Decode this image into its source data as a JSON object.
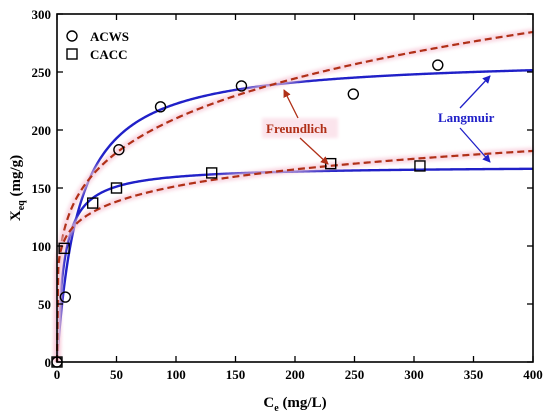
{
  "chart_data": {
    "type": "scatter",
    "xlabel": {
      "main": "C",
      "sub": "e",
      "rest": " (mg/L)"
    },
    "ylabel": {
      "main": "X",
      "sub": "eq",
      "rest": " (mg/g)"
    },
    "xlim": [
      0,
      400
    ],
    "ylim": [
      0,
      300
    ],
    "xticks": [
      0,
      50,
      100,
      150,
      200,
      250,
      300,
      350,
      400
    ],
    "yticks": [
      0,
      50,
      100,
      150,
      200,
      250,
      300
    ],
    "grid": false,
    "legend_position": "top-left",
    "series": [
      {
        "name": "ACWS",
        "marker": "circle",
        "points": [
          [
            0,
            0
          ],
          [
            7,
            56
          ],
          [
            52,
            183
          ],
          [
            87,
            220
          ],
          [
            155,
            238
          ],
          [
            249,
            231
          ],
          [
            320,
            256
          ]
        ]
      },
      {
        "name": "CACC",
        "marker": "square",
        "points": [
          [
            0,
            0
          ],
          [
            6,
            98
          ],
          [
            30,
            137
          ],
          [
            50,
            150
          ],
          [
            130,
            163
          ],
          [
            230,
            171
          ],
          [
            305,
            169
          ]
        ]
      }
    ],
    "fits": [
      {
        "model": "Langmuir",
        "for": "ACWS",
        "style": "solid",
        "color": "#2020c8",
        "qmax": 263,
        "K": 0.055
      },
      {
        "model": "Langmuir",
        "for": "CACC",
        "style": "solid",
        "color": "#2020c8",
        "qmax": 169,
        "K": 0.17
      },
      {
        "model": "Freundlich",
        "for": "ACWS",
        "style": "dashed",
        "color": "#b03018",
        "K": 76.6,
        "n_inv": 0.219
      },
      {
        "model": "Freundlich",
        "for": "CACC",
        "style": "dashed",
        "color": "#b03018",
        "K": 82.5,
        "n_inv": 0.132
      }
    ],
    "annotations": [
      {
        "text": "Freundlich",
        "color": "#b03018"
      },
      {
        "text": "Langmuir",
        "color": "#2020c8"
      }
    ]
  }
}
